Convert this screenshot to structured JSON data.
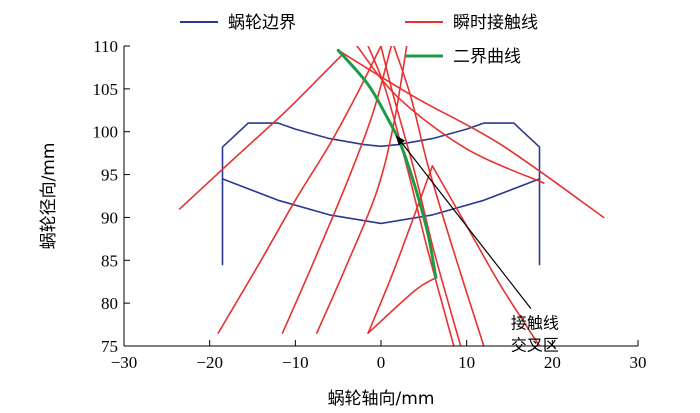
{
  "chart_data": {
    "type": "line",
    "xlabel": "蜗轮轴向/mm",
    "ylabel": "蜗轮径向/mm",
    "xlim": [
      -30,
      30
    ],
    "ylim": [
      75,
      110
    ],
    "xticks": [
      -30,
      -20,
      -10,
      0,
      10,
      20,
      30
    ],
    "xtick_labels": [
      "−30",
      "−20",
      "−10",
      "0",
      "10",
      "20",
      "30"
    ],
    "yticks": [
      75,
      80,
      85,
      90,
      95,
      100,
      105,
      110
    ],
    "ytick_labels": [
      "75",
      "80",
      "85",
      "90",
      "95",
      "100",
      "105",
      "110"
    ],
    "grid": false,
    "legend_position": "top",
    "colors": {
      "boundary": "#2b3990",
      "contact": "#e8312f",
      "envelope": "#1f9a48"
    },
    "series": [
      {
        "name": "蜗轮边界",
        "kind": "boundary",
        "segments": [
          [
            [
              -18.5,
              84.5
            ],
            [
              -18.5,
              98.2
            ],
            [
              -15.5,
              101
            ],
            [
              -12,
              101
            ],
            [
              -10,
              100.3
            ],
            [
              -6,
              99.2
            ],
            [
              -2,
              98.5
            ],
            [
              0,
              98.3
            ],
            [
              2,
              98.5
            ],
            [
              6,
              99.2
            ],
            [
              10,
              100.3
            ],
            [
              12,
              101
            ],
            [
              15.5,
              101
            ],
            [
              18.5,
              98.2
            ],
            [
              18.5,
              84.5
            ]
          ],
          [
            [
              -18.5,
              94.5
            ],
            [
              -12,
              92
            ],
            [
              -6,
              90.3
            ],
            [
              0,
              89.3
            ],
            [
              6,
              90.3
            ],
            [
              12,
              92
            ],
            [
              18.5,
              94.5
            ]
          ]
        ]
      },
      {
        "name": "瞬时接触线",
        "kind": "contact",
        "segments": [
          [
            [
              -23.5,
              91
            ],
            [
              -17,
              97
            ],
            [
              -11,
              102.5
            ],
            [
              -6,
              107.5
            ],
            [
              -4.5,
              109
            ]
          ],
          [
            [
              -5,
              109.5
            ],
            [
              4,
              104
            ],
            [
              14,
              98.5
            ],
            [
              26,
              90
            ]
          ],
          [
            [
              -2.8,
              110
            ],
            [
              2,
              104
            ],
            [
              10,
              98
            ],
            [
              19,
              94
            ]
          ],
          [
            [
              -19,
              76.5
            ],
            [
              -14,
              85
            ],
            [
              -10,
              92
            ],
            [
              -6,
              98.5
            ],
            [
              -3,
              104
            ],
            [
              0,
              110
            ]
          ],
          [
            [
              -11.5,
              76.5
            ],
            [
              -8,
              84.5
            ],
            [
              -4,
              94
            ],
            [
              -1,
              102
            ],
            [
              1.2,
              110
            ]
          ],
          [
            [
              -7.5,
              76.5
            ],
            [
              -4.2,
              84
            ],
            [
              -0.5,
              93
            ],
            [
              1.5,
              101
            ],
            [
              3,
              110
            ]
          ],
          [
            [
              -1.5,
              76.5
            ],
            [
              1.3,
              83.3
            ],
            [
              3.8,
              90
            ],
            [
              6,
              96
            ]
          ],
          [
            [
              -1.5,
              76.5
            ],
            [
              4,
              81.5
            ],
            [
              6.5,
              83
            ]
          ],
          [
            [
              8.5,
              75
            ],
            [
              5.5,
              86
            ],
            [
              3,
              96
            ],
            [
              0.5,
              105
            ],
            [
              -1.5,
              110
            ]
          ],
          [
            [
              9.3,
              75
            ],
            [
              6.2,
              86
            ],
            [
              4,
              95
            ],
            [
              1.5,
              104
            ],
            [
              0,
              110
            ]
          ],
          [
            [
              12,
              75
            ],
            [
              8.5,
              86
            ],
            [
              5.5,
              96
            ],
            [
              3.5,
              104
            ],
            [
              1.5,
              110
            ]
          ],
          [
            [
              18.5,
              75
            ],
            [
              14,
              82
            ],
            [
              10,
              89
            ],
            [
              6,
              96
            ]
          ]
        ]
      },
      {
        "name": "二界曲线",
        "kind": "envelope",
        "segments": [
          [
            [
              -5,
              109.5
            ],
            [
              -1.5,
              105.5
            ],
            [
              0.8,
              101.5
            ],
            [
              2.3,
              98.5
            ],
            [
              4,
              93.5
            ],
            [
              5.5,
              88
            ],
            [
              6.4,
              83
            ]
          ]
        ]
      }
    ],
    "annotations": [
      {
        "text": "接触线\n交叉区",
        "lines": [
          "接触线",
          "交叉区"
        ],
        "x": 17.5,
        "y": 77.5,
        "arrow_to": [
          1.8,
          99.5
        ]
      }
    ]
  }
}
